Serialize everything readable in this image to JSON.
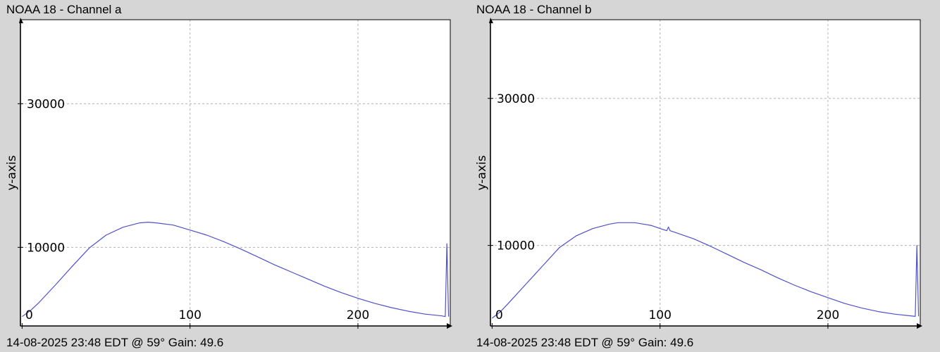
{
  "chart_data": [
    {
      "type": "line",
      "title": "NOAA 18 - Channel a",
      "footer": "14-08-2025 23:48 EDT @ 59° Gain: 49.6",
      "xlabel": "",
      "ylabel": "y-axis",
      "xlim": [
        -1,
        255
      ],
      "ylim": [
        -950,
        41700
      ],
      "x_ticks": [
        0,
        100,
        200
      ],
      "y_ticks": [
        10000,
        30000
      ],
      "grid": true,
      "line_color": "#5050cc",
      "series": [
        {
          "x": [
            0,
            5,
            10,
            20,
            30,
            40,
            50,
            60,
            70,
            75,
            80,
            90,
            100,
            110,
            120,
            130,
            140,
            150,
            160,
            170,
            180,
            190,
            200,
            210,
            220,
            230,
            240,
            250,
            252,
            253,
            254
          ],
          "values": [
            350,
            1200,
            2300,
            4800,
            7400,
            9900,
            11700,
            12800,
            13400,
            13500,
            13400,
            13100,
            12400,
            11700,
            10800,
            9800,
            8700,
            7600,
            6600,
            5600,
            4600,
            3700,
            2900,
            2200,
            1600,
            1100,
            700,
            450,
            350,
            10500,
            350
          ]
        }
      ]
    },
    {
      "type": "line",
      "title": "NOAA 18 - Channel b",
      "footer": "14-08-2025 23:48 EDT @ 59° Gain: 49.6",
      "xlabel": "",
      "ylabel": "y-axis",
      "xlim": [
        -1,
        255
      ],
      "ylim": [
        -950,
        40700
      ],
      "x_ticks": [
        0,
        100,
        200
      ],
      "y_ticks": [
        10000,
        30000
      ],
      "grid": true,
      "line_color": "#5050cc",
      "series": [
        {
          "x": [
            0,
            5,
            10,
            20,
            30,
            40,
            50,
            60,
            70,
            75,
            80,
            85,
            90,
            95,
            100,
            104,
            105,
            106,
            110,
            120,
            130,
            140,
            150,
            160,
            170,
            180,
            190,
            200,
            210,
            220,
            230,
            240,
            250,
            252,
            253,
            254
          ],
          "values": [
            100,
            1000,
            2200,
            4700,
            7200,
            9700,
            11300,
            12300,
            12900,
            13100,
            13100,
            13100,
            12900,
            12700,
            12300,
            12000,
            12500,
            12000,
            11700,
            10900,
            9900,
            8800,
            7700,
            6700,
            5600,
            4600,
            3700,
            2900,
            2100,
            1500,
            1000,
            650,
            400,
            350,
            10000,
            350
          ]
        }
      ]
    }
  ]
}
